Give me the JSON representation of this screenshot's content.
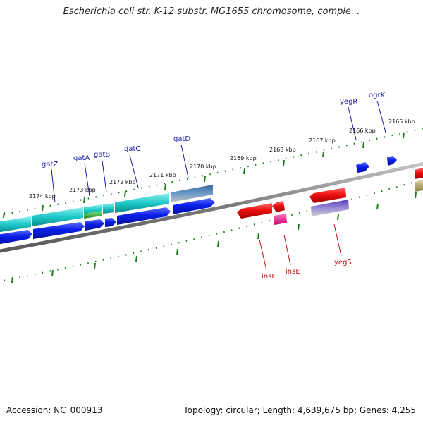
{
  "title": "Escherichia coli str. K-12 substr. MG1655 chromosome, comple...",
  "footer": {
    "accession": "Accession: NC_000913",
    "summary": "Topology: circular; Length: 4,639,675 bp; Genes: 4,255"
  },
  "colors": {
    "backbone": "#8a8a8a",
    "tick": "#1c7c1c",
    "gene_label_top": "#1a1aa8",
    "gene_label_bottom": "#c01010",
    "gene_blue": "#0a1ee8",
    "gene_cyan": "#1ec8c8",
    "gene_red": "#ee1010",
    "gene_pink": "#f01888",
    "gene_green": "#30b030"
  },
  "scale_labels": [
    "2174 kbp",
    "2173 kbp",
    "2172 kbp",
    "2171 kbp",
    "2170 kbp",
    "2169 kbp",
    "2168 kbp",
    "2167 kbp",
    "2166 kbp",
    "2165 kbp"
  ],
  "gene_labels_top": [
    "gatZ",
    "gatA",
    "gatB",
    "gatC",
    "gatD",
    "yegR",
    "ogrK"
  ],
  "gene_labels_bottom": [
    "insF",
    "insE",
    "yegS"
  ]
}
